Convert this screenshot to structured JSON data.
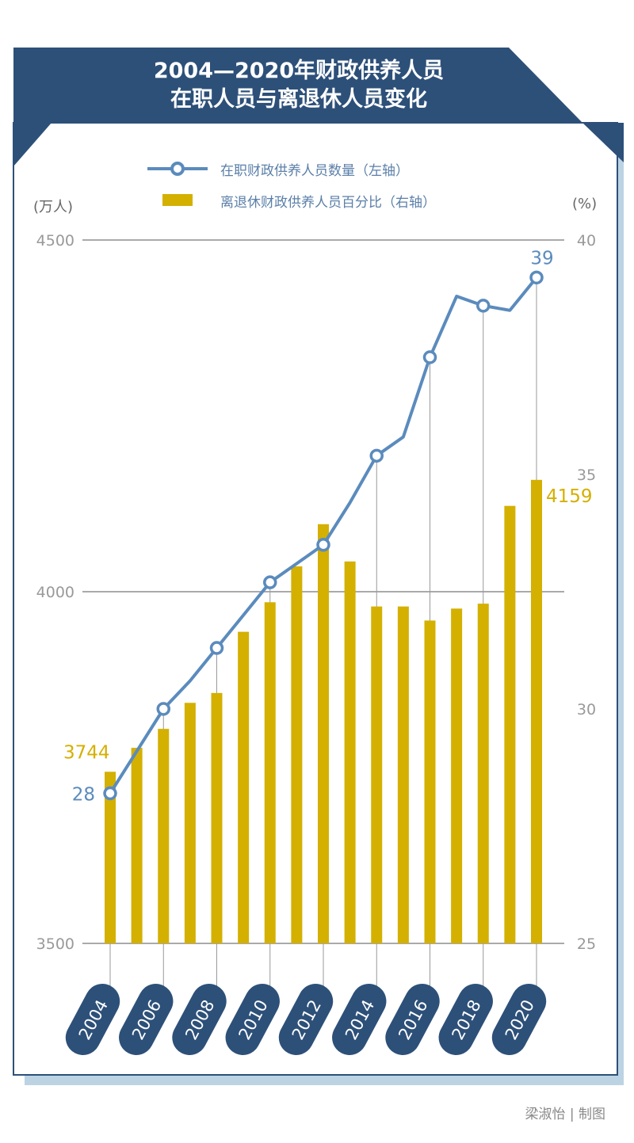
{
  "title_line1": "2004—2020年财政供养人员",
  "title_line2": "在职人员与离退休人员变化",
  "credit": "梁淑怡 | 制图",
  "colors": {
    "navy": "#2d5079",
    "line": "#5b8bbd",
    "bar": "#d4b000",
    "shadow": "#bcd3e3",
    "grid": "#aaaaaa"
  },
  "chart_data": {
    "type": "bar+line",
    "title": "2004—2020年财政供养人员在职人员与离退休人员变化",
    "left_unit": "(万人)",
    "right_unit": "(%)",
    "left_ylim": [
      3500,
      4500
    ],
    "right_ylim": [
      25,
      40
    ],
    "left_ticks": [
      "3500",
      "4000",
      "4500"
    ],
    "right_ticks": [
      "25",
      "30",
      "35",
      "40"
    ],
    "legend": [
      {
        "name": "在职财政供养人员数量（左轴）",
        "type": "line"
      },
      {
        "name": "离退休财政供养人员百分比（右轴）",
        "type": "bar"
      }
    ],
    "x": [
      2004,
      2005,
      2006,
      2007,
      2008,
      2009,
      2010,
      2011,
      2012,
      2013,
      2014,
      2015,
      2016,
      2017,
      2018,
      2019,
      2020
    ],
    "x_tick_labels": [
      "2004",
      "2006",
      "2008",
      "2010",
      "2012",
      "2014",
      "2016",
      "2018",
      "2020"
    ],
    "bars": [
      3744,
      3778,
      3805,
      3842,
      3856,
      3943,
      3985,
      4036,
      4096,
      4043,
      3979,
      3979,
      3959,
      3976,
      3983,
      4122,
      4159
    ],
    "line": [
      28.2,
      29.1,
      30.0,
      30.6,
      31.3,
      32.0,
      32.7,
      33.1,
      33.5,
      34.4,
      35.4,
      35.8,
      37.5,
      38.8,
      38.6,
      38.5,
      39.2
    ],
    "annotations": {
      "bar_first": "3744",
      "bar_last": "4159",
      "line_first": "28",
      "line_last": "39"
    }
  }
}
